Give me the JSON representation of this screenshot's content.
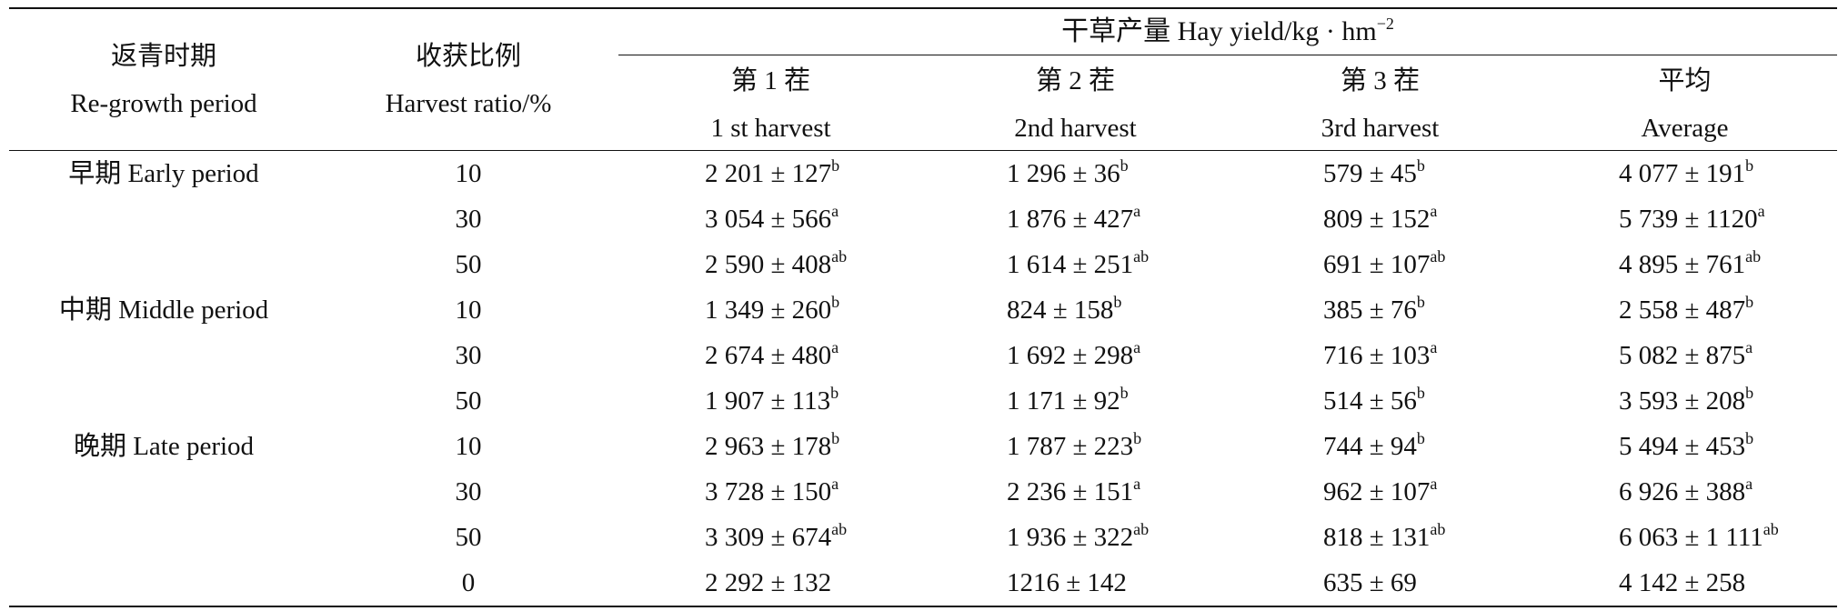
{
  "table": {
    "header": {
      "period_cn": "返青时期",
      "period_en": "Re-growth period",
      "ratio_cn": "收获比例",
      "ratio_en": "Harvest ratio/%",
      "group_title": "干草产量 Hay yield/kg · hm",
      "group_unit_exp": "−2",
      "columns": [
        {
          "cn": "第 1 茬",
          "en": "1 st harvest"
        },
        {
          "cn": "第 2 茬",
          "en": "2nd harvest"
        },
        {
          "cn": "第 3 茬",
          "en": "3rd harvest"
        },
        {
          "cn": "平均",
          "en": "Average"
        }
      ]
    },
    "rows": [
      {
        "period": "早期 Early period",
        "ratio": "10",
        "cells": [
          {
            "v": "2 201 ± 127",
            "s": "b"
          },
          {
            "v": "1 296 ± 36",
            "s": "b"
          },
          {
            "v": "579 ± 45",
            "s": "b"
          },
          {
            "v": "4 077 ± 191",
            "s": "b"
          }
        ]
      },
      {
        "period": "",
        "ratio": "30",
        "cells": [
          {
            "v": "3 054 ± 566",
            "s": "a"
          },
          {
            "v": "1 876 ± 427",
            "s": "a"
          },
          {
            "v": "809 ± 152",
            "s": "a"
          },
          {
            "v": "5 739 ± 1120",
            "s": "a"
          }
        ]
      },
      {
        "period": "",
        "ratio": "50",
        "cells": [
          {
            "v": "2 590 ± 408",
            "s": "ab"
          },
          {
            "v": "1 614 ± 251",
            "s": "ab"
          },
          {
            "v": "691 ± 107",
            "s": "ab"
          },
          {
            "v": "4 895 ± 761",
            "s": "ab"
          }
        ]
      },
      {
        "period": "中期 Middle period",
        "ratio": "10",
        "cells": [
          {
            "v": "1 349 ± 260",
            "s": "b"
          },
          {
            "v": "824 ± 158",
            "s": "b"
          },
          {
            "v": "385 ± 76",
            "s": "b"
          },
          {
            "v": "2 558 ± 487",
            "s": "b"
          }
        ]
      },
      {
        "period": "",
        "ratio": "30",
        "cells": [
          {
            "v": "2 674 ± 480",
            "s": "a"
          },
          {
            "v": "1 692 ± 298",
            "s": "a"
          },
          {
            "v": "716 ± 103",
            "s": "a"
          },
          {
            "v": "5 082 ± 875",
            "s": "a"
          }
        ]
      },
      {
        "period": "",
        "ratio": "50",
        "cells": [
          {
            "v": "1 907 ± 113",
            "s": "b"
          },
          {
            "v": "1 171 ± 92",
            "s": "b"
          },
          {
            "v": "514 ± 56",
            "s": "b"
          },
          {
            "v": "3 593 ± 208",
            "s": "b"
          }
        ]
      },
      {
        "period": "晚期 Late period",
        "ratio": "10",
        "cells": [
          {
            "v": "2 963 ± 178",
            "s": "b"
          },
          {
            "v": "1 787 ± 223",
            "s": "b"
          },
          {
            "v": "744 ± 94",
            "s": "b"
          },
          {
            "v": "5 494 ± 453",
            "s": "b"
          }
        ]
      },
      {
        "period": "",
        "ratio": "30",
        "cells": [
          {
            "v": "3 728 ± 150",
            "s": "a"
          },
          {
            "v": "2 236 ± 151",
            "s": "a"
          },
          {
            "v": "962 ± 107",
            "s": "a"
          },
          {
            "v": "6 926 ± 388",
            "s": "a"
          }
        ]
      },
      {
        "period": "",
        "ratio": "50",
        "cells": [
          {
            "v": "3 309 ± 674",
            "s": "ab"
          },
          {
            "v": "1 936 ± 322",
            "s": "ab"
          },
          {
            "v": "818 ± 131",
            "s": "ab"
          },
          {
            "v": "6 063 ± 1 111",
            "s": "ab"
          }
        ]
      },
      {
        "period": "",
        "ratio": "0",
        "cells": [
          {
            "v": "2 292 ± 132",
            "s": ""
          },
          {
            "v": "1216 ± 142",
            "s": ""
          },
          {
            "v": "635 ± 69",
            "s": ""
          },
          {
            "v": "4 142 ± 258",
            "s": ""
          }
        ]
      }
    ]
  }
}
